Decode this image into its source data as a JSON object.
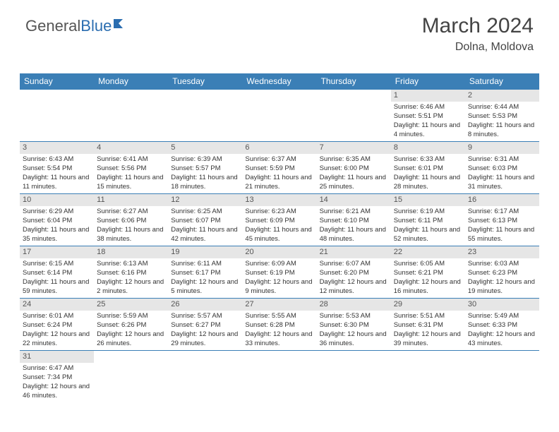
{
  "brand": {
    "part1": "General",
    "part2": "Blue"
  },
  "header": {
    "month": "March 2024",
    "location": "Dolna, Moldova"
  },
  "colors": {
    "header_bg": "#3b7fb6",
    "header_text": "#ffffff",
    "daynum_bg": "#e6e6e6",
    "row_border": "#3b7fb6",
    "text": "#333333"
  },
  "dayNames": [
    "Sunday",
    "Monday",
    "Tuesday",
    "Wednesday",
    "Thursday",
    "Friday",
    "Saturday"
  ],
  "weeks": [
    [
      null,
      null,
      null,
      null,
      null,
      {
        "n": "1",
        "sr": "6:46 AM",
        "ss": "5:51 PM",
        "dl": "11 hours and 4 minutes."
      },
      {
        "n": "2",
        "sr": "6:44 AM",
        "ss": "5:53 PM",
        "dl": "11 hours and 8 minutes."
      }
    ],
    [
      {
        "n": "3",
        "sr": "6:43 AM",
        "ss": "5:54 PM",
        "dl": "11 hours and 11 minutes."
      },
      {
        "n": "4",
        "sr": "6:41 AM",
        "ss": "5:56 PM",
        "dl": "11 hours and 15 minutes."
      },
      {
        "n": "5",
        "sr": "6:39 AM",
        "ss": "5:57 PM",
        "dl": "11 hours and 18 minutes."
      },
      {
        "n": "6",
        "sr": "6:37 AM",
        "ss": "5:59 PM",
        "dl": "11 hours and 21 minutes."
      },
      {
        "n": "7",
        "sr": "6:35 AM",
        "ss": "6:00 PM",
        "dl": "11 hours and 25 minutes."
      },
      {
        "n": "8",
        "sr": "6:33 AM",
        "ss": "6:01 PM",
        "dl": "11 hours and 28 minutes."
      },
      {
        "n": "9",
        "sr": "6:31 AM",
        "ss": "6:03 PM",
        "dl": "11 hours and 31 minutes."
      }
    ],
    [
      {
        "n": "10",
        "sr": "6:29 AM",
        "ss": "6:04 PM",
        "dl": "11 hours and 35 minutes."
      },
      {
        "n": "11",
        "sr": "6:27 AM",
        "ss": "6:06 PM",
        "dl": "11 hours and 38 minutes."
      },
      {
        "n": "12",
        "sr": "6:25 AM",
        "ss": "6:07 PM",
        "dl": "11 hours and 42 minutes."
      },
      {
        "n": "13",
        "sr": "6:23 AM",
        "ss": "6:09 PM",
        "dl": "11 hours and 45 minutes."
      },
      {
        "n": "14",
        "sr": "6:21 AM",
        "ss": "6:10 PM",
        "dl": "11 hours and 48 minutes."
      },
      {
        "n": "15",
        "sr": "6:19 AM",
        "ss": "6:11 PM",
        "dl": "11 hours and 52 minutes."
      },
      {
        "n": "16",
        "sr": "6:17 AM",
        "ss": "6:13 PM",
        "dl": "11 hours and 55 minutes."
      }
    ],
    [
      {
        "n": "17",
        "sr": "6:15 AM",
        "ss": "6:14 PM",
        "dl": "11 hours and 59 minutes."
      },
      {
        "n": "18",
        "sr": "6:13 AM",
        "ss": "6:16 PM",
        "dl": "12 hours and 2 minutes."
      },
      {
        "n": "19",
        "sr": "6:11 AM",
        "ss": "6:17 PM",
        "dl": "12 hours and 5 minutes."
      },
      {
        "n": "20",
        "sr": "6:09 AM",
        "ss": "6:19 PM",
        "dl": "12 hours and 9 minutes."
      },
      {
        "n": "21",
        "sr": "6:07 AM",
        "ss": "6:20 PM",
        "dl": "12 hours and 12 minutes."
      },
      {
        "n": "22",
        "sr": "6:05 AM",
        "ss": "6:21 PM",
        "dl": "12 hours and 16 minutes."
      },
      {
        "n": "23",
        "sr": "6:03 AM",
        "ss": "6:23 PM",
        "dl": "12 hours and 19 minutes."
      }
    ],
    [
      {
        "n": "24",
        "sr": "6:01 AM",
        "ss": "6:24 PM",
        "dl": "12 hours and 22 minutes."
      },
      {
        "n": "25",
        "sr": "5:59 AM",
        "ss": "6:26 PM",
        "dl": "12 hours and 26 minutes."
      },
      {
        "n": "26",
        "sr": "5:57 AM",
        "ss": "6:27 PM",
        "dl": "12 hours and 29 minutes."
      },
      {
        "n": "27",
        "sr": "5:55 AM",
        "ss": "6:28 PM",
        "dl": "12 hours and 33 minutes."
      },
      {
        "n": "28",
        "sr": "5:53 AM",
        "ss": "6:30 PM",
        "dl": "12 hours and 36 minutes."
      },
      {
        "n": "29",
        "sr": "5:51 AM",
        "ss": "6:31 PM",
        "dl": "12 hours and 39 minutes."
      },
      {
        "n": "30",
        "sr": "5:49 AM",
        "ss": "6:33 PM",
        "dl": "12 hours and 43 minutes."
      }
    ],
    [
      {
        "n": "31",
        "sr": "6:47 AM",
        "ss": "7:34 PM",
        "dl": "12 hours and 46 minutes."
      },
      null,
      null,
      null,
      null,
      null,
      null
    ]
  ],
  "labels": {
    "sunrise": "Sunrise: ",
    "sunset": "Sunset: ",
    "daylight": "Daylight: "
  }
}
